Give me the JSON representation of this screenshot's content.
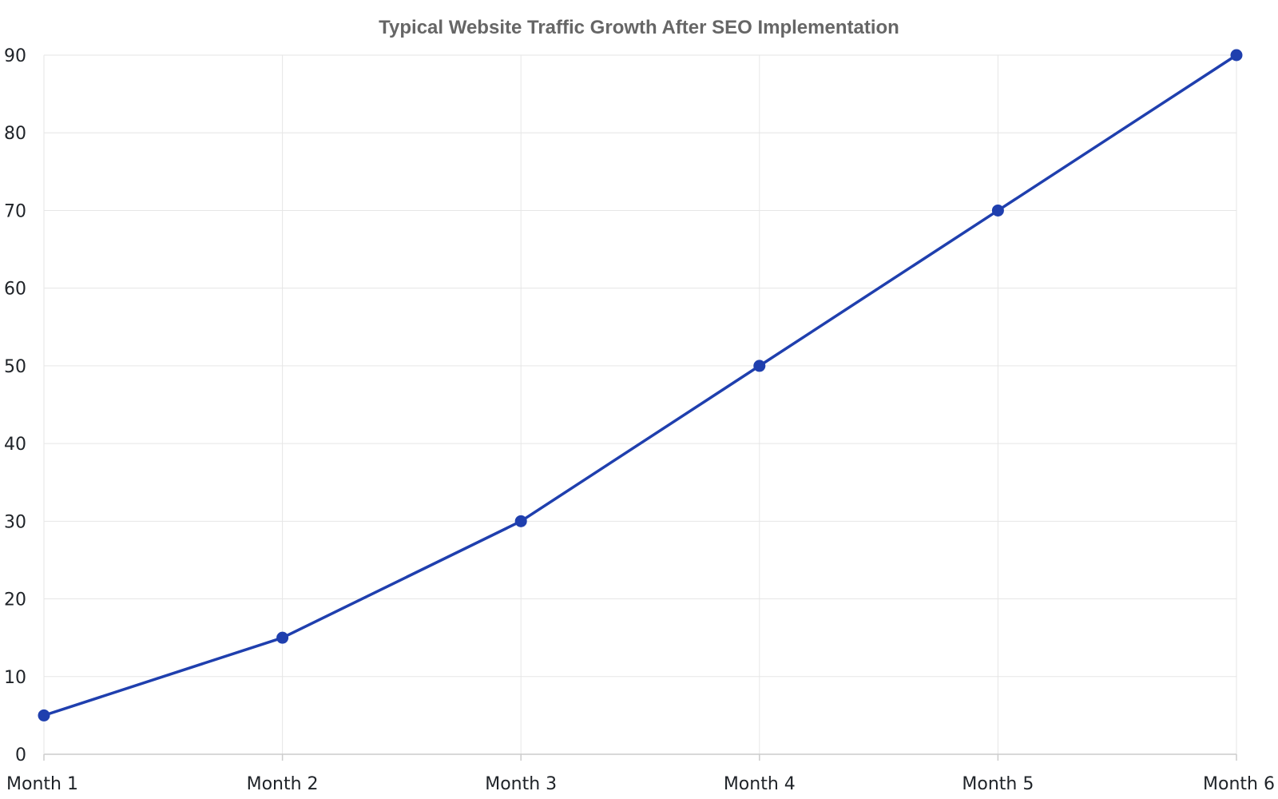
{
  "chart_data": {
    "type": "line",
    "title": "Typical Website Traffic Growth After SEO Implementation",
    "xlabel": "",
    "ylabel": "",
    "categories": [
      "Month 1",
      "Month 2",
      "Month 3",
      "Month 4",
      "Month 5",
      "Month 6"
    ],
    "series": [
      {
        "values": [
          5,
          15,
          30,
          50,
          70,
          90
        ],
        "color": "#1f3fae"
      }
    ],
    "ylim": [
      0,
      90
    ],
    "yticks": [
      0,
      10,
      20,
      30,
      40,
      50,
      60,
      70,
      80,
      90
    ],
    "grid": true,
    "legend": "none"
  }
}
